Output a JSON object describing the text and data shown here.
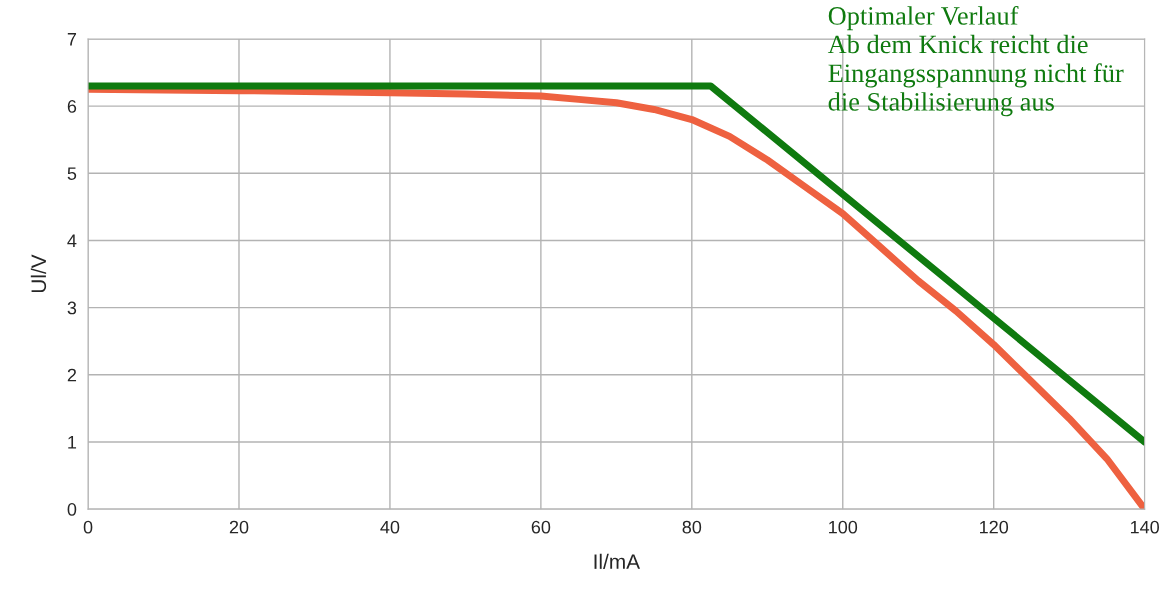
{
  "chart_data": {
    "type": "line",
    "xlabel": "Il/mA",
    "ylabel": "Ul/V",
    "xlim": [
      0,
      140
    ],
    "xticks": [
      0,
      20,
      40,
      60,
      80,
      100,
      120,
      140
    ],
    "ylim": [
      0,
      7
    ],
    "yticks": [
      0,
      1,
      2,
      3,
      4,
      5,
      6,
      7
    ],
    "grid": true,
    "series": [
      {
        "color": "#ee6140",
        "x": [
          0,
          20,
          40,
          50,
          60,
          65,
          70,
          75,
          80,
          85,
          90,
          95,
          100,
          105,
          110,
          115,
          120,
          125,
          130,
          135,
          140
        ],
        "values": [
          6.25,
          6.23,
          6.2,
          6.18,
          6.15,
          6.1,
          6.05,
          5.95,
          5.8,
          5.55,
          5.2,
          4.8,
          4.4,
          3.9,
          3.4,
          2.95,
          2.45,
          1.9,
          1.35,
          0.75,
          0.0
        ]
      },
      {
        "color": "#0f7a0f",
        "x": [
          0,
          82.5,
          140
        ],
        "values": [
          6.3,
          6.3,
          1.0
        ]
      }
    ],
    "annotations": [
      "Optimaler Verlauf\nAb dem Knick reicht die\nEingangsspannung nicht für\ndie Stabilisierung aus"
    ]
  }
}
